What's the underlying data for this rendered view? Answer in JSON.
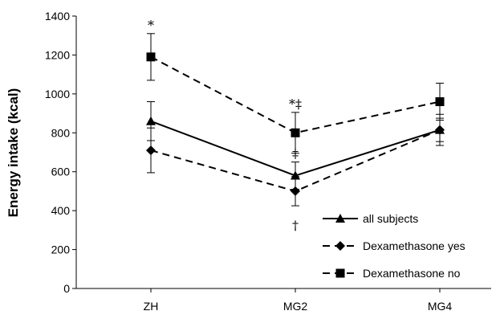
{
  "chart_data": {
    "type": "line",
    "title": "",
    "xlabel": "",
    "ylabel": "Energy intake (kcal)",
    "categories": [
      "ZH",
      "MG2",
      "MG4"
    ],
    "ylim": [
      0,
      1400
    ],
    "yticks": [
      0,
      200,
      400,
      600,
      800,
      1000,
      1200,
      1400
    ],
    "grid": false,
    "legend_position": "bottom-right",
    "series": [
      {
        "name": "all subjects",
        "values": [
          860,
          580,
          815
        ],
        "error": [
          100,
          70,
          60
        ],
        "marker": "triangle",
        "line_style": "solid",
        "color": "#000000"
      },
      {
        "name": "Dexamethasone yes",
        "values": [
          710,
          500,
          815
        ],
        "error": [
          115,
          75,
          80
        ],
        "marker": "diamond",
        "line_style": "dashed",
        "color": "#000000"
      },
      {
        "name": "Dexamethasone no",
        "values": [
          1190,
          800,
          960
        ],
        "error": [
          120,
          105,
          95
        ],
        "marker": "square",
        "line_style": "dashed",
        "color": "#000000"
      }
    ],
    "annotations": [
      {
        "text": "*",
        "category": "ZH",
        "series": "Dexamethasone no"
      },
      {
        "text": "*‡",
        "category": "MG2",
        "series": "Dexamethasone no"
      },
      {
        "text": "‡",
        "category": "MG2",
        "series": "all subjects"
      },
      {
        "text": "†",
        "category": "MG2",
        "series": "Dexamethasone yes"
      }
    ]
  }
}
